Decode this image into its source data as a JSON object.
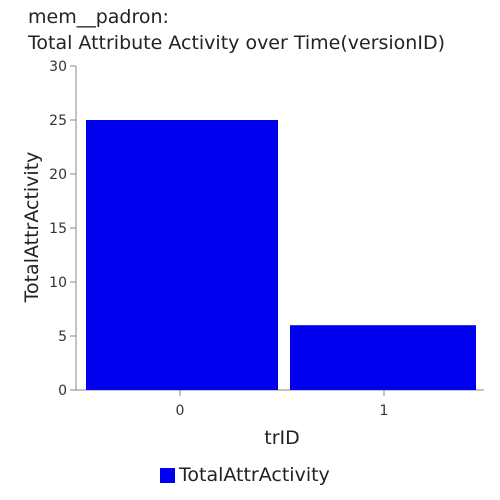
{
  "chart_data": {
    "type": "bar",
    "title_line1": "mem__padron:",
    "title_line2": "Total Attribute Activity over Time(versionID)",
    "xlabel": "trID",
    "ylabel": "TotalAttrActivity",
    "categories": [
      "0",
      "1"
    ],
    "series": [
      {
        "name": "TotalAttrActivity",
        "values": [
          25,
          6
        ],
        "color": "#0000ee"
      }
    ],
    "ylim": [
      0,
      30
    ],
    "yticks": [
      0,
      5,
      10,
      15,
      20,
      25,
      30
    ],
    "grid": false,
    "legend_position": "bottom"
  }
}
